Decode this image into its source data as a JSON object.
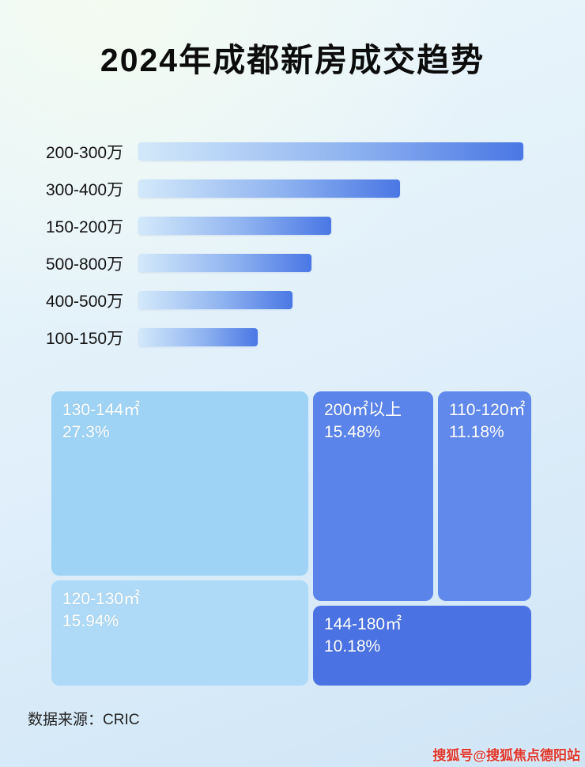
{
  "title": "2024年成都新房成交趋势",
  "source": "数据来源：CRIC",
  "watermark": "搜狐号@搜狐焦点德阳站",
  "colors": {
    "bar_gradient_start": "#d3e9fa",
    "bar_gradient_end": "#4a77e4",
    "treemap_light_blue": "#9ed3f5",
    "treemap_lighter_blue": "#aedaf7",
    "treemap_medium_blue": "#5b84ea",
    "treemap_dark_blue": "#4a72e2",
    "watermark_red": "#e0362b"
  },
  "chart_data": [
    {
      "type": "bar",
      "orientation": "horizontal",
      "title": "2024年成都新房成交趋势",
      "categories": [
        "200-300万",
        "300-400万",
        "150-200万",
        "500-800万",
        "400-500万",
        "100-150万"
      ],
      "values": [
        100,
        68,
        50,
        45,
        40,
        31
      ],
      "value_note": "relative bar lengths, percent of longest bar; no numeric axis labels shown",
      "xlabel": "",
      "ylabel": "",
      "grid": false,
      "legend": false
    },
    {
      "type": "treemap",
      "items": [
        {
          "label": "130-144㎡",
          "pct": "27.3%",
          "value": 27.3
        },
        {
          "label": "120-130㎡",
          "pct": "15.94%",
          "value": 15.94
        },
        {
          "label": "200㎡以上",
          "pct": "15.48%",
          "value": 15.48
        },
        {
          "label": "110-120㎡",
          "pct": "11.18%",
          "value": 11.18
        },
        {
          "label": "144-180㎡",
          "pct": "10.18%",
          "value": 10.18
        }
      ]
    }
  ]
}
